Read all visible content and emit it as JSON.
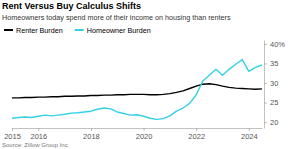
{
  "chart_data": {
    "type": "line",
    "title": "Rent Versus Buy Calculus Shifts",
    "subtitle": "Homeowners today spend more of their income on housing than renters",
    "source": "Source: Zillow Group Inc.",
    "x": [
      2015.0,
      2015.25,
      2015.5,
      2015.75,
      2016.0,
      2016.25,
      2016.5,
      2016.75,
      2017.0,
      2017.25,
      2017.5,
      2017.75,
      2018.0,
      2018.25,
      2018.5,
      2018.75,
      2019.0,
      2019.25,
      2019.5,
      2019.75,
      2020.0,
      2020.25,
      2020.5,
      2020.75,
      2021.0,
      2021.25,
      2021.5,
      2021.75,
      2022.0,
      2022.25,
      2022.5,
      2022.75,
      2023.0,
      2023.25,
      2023.5,
      2023.75,
      2024.0,
      2024.25,
      2024.5
    ],
    "series": [
      {
        "name": "Renter Burden",
        "color": "#000000",
        "values": [
          26.2,
          26.2,
          26.3,
          26.3,
          26.4,
          26.4,
          26.5,
          26.5,
          26.6,
          26.6,
          26.7,
          26.7,
          26.8,
          26.8,
          26.9,
          26.9,
          27.0,
          27.0,
          27.1,
          27.1,
          27.1,
          27.0,
          27.0,
          27.1,
          27.3,
          27.6,
          28.0,
          28.6,
          29.2,
          29.7,
          29.8,
          29.6,
          29.2,
          28.9,
          28.7,
          28.6,
          28.5,
          28.4,
          28.5
        ]
      },
      {
        "name": "Homeowner Burden",
        "color": "#33d1e6",
        "values": [
          21.0,
          21.2,
          21.3,
          21.2,
          21.5,
          21.8,
          21.6,
          21.8,
          22.0,
          22.3,
          22.4,
          22.6,
          22.8,
          23.3,
          23.6,
          23.4,
          22.6,
          22.2,
          21.8,
          21.9,
          21.5,
          21.0,
          20.7,
          20.9,
          21.6,
          22.8,
          23.6,
          24.8,
          27.0,
          30.5,
          32.0,
          33.5,
          32.0,
          33.5,
          34.8,
          36.0,
          33.0,
          34.0,
          34.6
        ]
      }
    ],
    "xlim": [
      2015.0,
      2024.5
    ],
    "xticks": [
      2015,
      2016,
      2018,
      2020,
      2022,
      2024
    ],
    "ylim": [
      18.5,
      41
    ],
    "yticks": [
      20,
      25,
      30,
      35,
      {
        "value": 40,
        "label": "40%"
      }
    ],
    "grid": false
  }
}
